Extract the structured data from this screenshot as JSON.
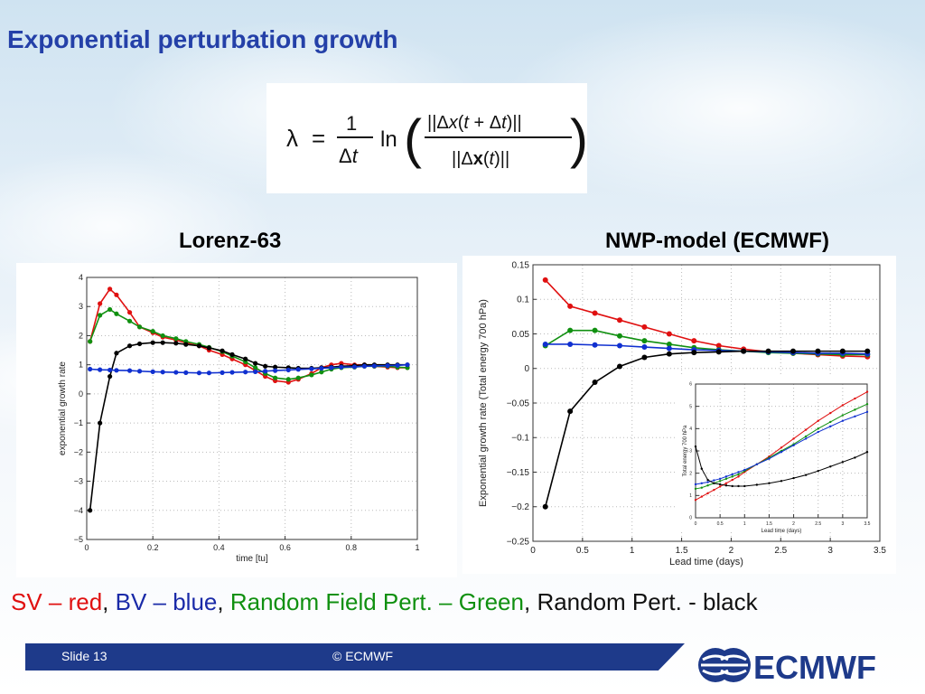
{
  "slide_title": "Exponential perturbation growth",
  "left_label": "Lorenz-63",
  "right_label": "NWP-model (ECMWF)",
  "legend": {
    "sv": "SV – red",
    "sep1": ", ",
    "bv": "BV – blue",
    "sep2": ", ",
    "rfp": "Random Field Pert. – Green",
    "sep3": ", ",
    "rp": "Random Pert. - black"
  },
  "footer": {
    "slide": "Slide 13",
    "copyright": "© ECMWF",
    "logo_text": "ECMWF"
  },
  "colors": {
    "sv": "#e01010",
    "bv": "#1030d0",
    "rfp": "#109010",
    "rp": "#000000",
    "title": "#2440a8"
  },
  "chart_data": [
    {
      "type": "line",
      "xlabel": "time [tu]",
      "ylabel": "exponential growth rate",
      "xlim": [
        0,
        1
      ],
      "ylim": [
        -5,
        4
      ],
      "xticks": [
        0,
        0.2,
        0.4,
        0.6,
        0.8,
        1
      ],
      "xtick_labels": [
        "0",
        "0.2",
        "0.4",
        "0.6",
        "0.8",
        "1"
      ],
      "yticks": [
        -5,
        -4,
        -3,
        -2,
        -1,
        0,
        1,
        2,
        3,
        4
      ],
      "ytick_labels": [
        "−5",
        "−4",
        "−3",
        "−2",
        "−1",
        "0",
        "1",
        "2",
        "3",
        "4"
      ],
      "grid": true,
      "x": [
        0.01,
        0.04,
        0.07,
        0.09,
        0.13,
        0.16,
        0.2,
        0.23,
        0.27,
        0.3,
        0.34,
        0.37,
        0.41,
        0.44,
        0.48,
        0.51,
        0.54,
        0.57,
        0.61,
        0.64,
        0.68,
        0.71,
        0.74,
        0.77,
        0.81,
        0.84,
        0.87,
        0.91,
        0.94,
        0.97
      ],
      "series": [
        {
          "color": "#e01010",
          "values": [
            1.8,
            3.1,
            3.6,
            3.4,
            2.8,
            2.3,
            2.1,
            1.95,
            1.85,
            1.75,
            1.65,
            1.5,
            1.35,
            1.2,
            1.0,
            0.8,
            0.6,
            0.45,
            0.4,
            0.5,
            0.7,
            0.9,
            1.0,
            1.05,
            1.0,
            1.0,
            0.95,
            0.92,
            0.9,
            0.9
          ]
        },
        {
          "color": "#109010",
          "values": [
            1.8,
            2.7,
            2.9,
            2.75,
            2.5,
            2.3,
            2.15,
            2.0,
            1.9,
            1.8,
            1.7,
            1.6,
            1.45,
            1.3,
            1.1,
            0.9,
            0.7,
            0.55,
            0.5,
            0.55,
            0.65,
            0.75,
            0.85,
            0.9,
            0.92,
            0.95,
            0.95,
            0.95,
            0.92,
            0.9
          ]
        },
        {
          "color": "#000000",
          "values": [
            -4.0,
            -1.0,
            0.6,
            1.4,
            1.65,
            1.72,
            1.76,
            1.76,
            1.74,
            1.7,
            1.65,
            1.58,
            1.48,
            1.35,
            1.2,
            1.05,
            0.95,
            0.92,
            0.9,
            0.88,
            0.88,
            0.9,
            0.92,
            0.95,
            0.97,
            1.0,
            1.0,
            1.0,
            1.0,
            1.0
          ]
        },
        {
          "color": "#1030d0",
          "values": [
            0.85,
            0.83,
            0.82,
            0.81,
            0.8,
            0.78,
            0.76,
            0.75,
            0.74,
            0.73,
            0.72,
            0.72,
            0.73,
            0.74,
            0.75,
            0.76,
            0.78,
            0.8,
            0.82,
            0.84,
            0.86,
            0.88,
            0.9,
            0.92,
            0.93,
            0.95,
            0.96,
            0.97,
            0.98,
            1.0
          ]
        }
      ]
    },
    {
      "type": "line",
      "xlabel": "Lead time (days)",
      "ylabel": "Exponential growth rate (Total energy 700 hPa)",
      "xlim": [
        0,
        3.5
      ],
      "ylim": [
        -0.25,
        0.15
      ],
      "xticks": [
        0,
        0.5,
        1,
        1.5,
        2,
        2.5,
        3,
        3.5
      ],
      "xtick_labels": [
        "0",
        "0.5",
        "1",
        "1.5",
        "2",
        "2.5",
        "3",
        "3.5"
      ],
      "yticks": [
        -0.25,
        -0.2,
        -0.15,
        -0.1,
        -0.05,
        0,
        0.05,
        0.1,
        0.15
      ],
      "ytick_labels": [
        "−0.25",
        "−0.2",
        "−0.15",
        "−0.1",
        "−0.05",
        "0",
        "0.05",
        "0.1",
        "0.15"
      ],
      "grid": true,
      "x": [
        0.125,
        0.375,
        0.625,
        0.875,
        1.125,
        1.375,
        1.625,
        1.875,
        2.125,
        2.375,
        2.625,
        2.875,
        3.125,
        3.375
      ],
      "series": [
        {
          "color": "#e01010",
          "values": [
            0.128,
            0.09,
            0.08,
            0.07,
            0.06,
            0.05,
            0.04,
            0.033,
            0.028,
            0.024,
            0.022,
            0.02,
            0.018,
            0.017
          ]
        },
        {
          "color": "#109010",
          "values": [
            0.033,
            0.055,
            0.055,
            0.047,
            0.04,
            0.035,
            0.03,
            0.027,
            0.025,
            0.023,
            0.022,
            0.021,
            0.02,
            0.02
          ]
        },
        {
          "color": "#1030d0",
          "values": [
            0.035,
            0.035,
            0.034,
            0.033,
            0.031,
            0.029,
            0.027,
            0.026,
            0.025,
            0.024,
            0.023,
            0.022,
            0.022,
            0.021
          ]
        },
        {
          "color": "#000000",
          "values": [
            -0.2,
            -0.062,
            -0.02,
            0.003,
            0.016,
            0.021,
            0.023,
            0.024,
            0.025,
            0.025,
            0.025,
            0.025,
            0.025,
            0.025
          ]
        }
      ],
      "inset": {
        "ylabel": "Total energy 700 hPa",
        "xlabel": "Lead time (days)",
        "xlim": [
          0,
          3.5
        ],
        "ylim": [
          0,
          6
        ],
        "xticks": [
          0,
          0.5,
          1,
          1.5,
          2,
          2.5,
          3,
          3.5
        ],
        "xtick_labels": [
          "0",
          "0.5",
          "1",
          "1.5",
          "2",
          "2.5",
          "3",
          "3.5"
        ],
        "yticks": [
          0,
          1,
          2,
          3,
          4,
          5,
          6
        ],
        "ytick_labels": [
          "0",
          "1",
          "2",
          "3",
          "4",
          "5",
          "6"
        ],
        "x": [
          0,
          0.125,
          0.25,
          0.375,
          0.5,
          0.625,
          0.75,
          0.875,
          1,
          1.25,
          1.5,
          1.75,
          2,
          2.25,
          2.5,
          2.75,
          3,
          3.25,
          3.5
        ],
        "series": [
          {
            "color": "#e01010",
            "values": [
              0.8,
              0.95,
              1.1,
              1.25,
              1.4,
              1.55,
              1.7,
              1.85,
              2.05,
              2.4,
              2.75,
              3.15,
              3.55,
              3.95,
              4.35,
              4.7,
              5.05,
              5.35,
              5.65
            ]
          },
          {
            "color": "#109010",
            "values": [
              1.3,
              1.35,
              1.45,
              1.55,
              1.65,
              1.75,
              1.85,
              1.95,
              2.1,
              2.4,
              2.7,
              3.0,
              3.3,
              3.65,
              4.0,
              4.3,
              4.6,
              4.85,
              5.1
            ]
          },
          {
            "color": "#1030d0",
            "values": [
              1.5,
              1.55,
              1.6,
              1.68,
              1.75,
              1.85,
              1.95,
              2.05,
              2.15,
              2.4,
              2.65,
              2.95,
              3.25,
              3.55,
              3.85,
              4.1,
              4.35,
              4.55,
              4.75
            ]
          },
          {
            "color": "#000000",
            "values": [
              3.2,
              2.2,
              1.7,
              1.55,
              1.5,
              1.45,
              1.42,
              1.42,
              1.42,
              1.48,
              1.55,
              1.65,
              1.78,
              1.92,
              2.1,
              2.3,
              2.5,
              2.7,
              2.95
            ]
          }
        ]
      }
    }
  ]
}
